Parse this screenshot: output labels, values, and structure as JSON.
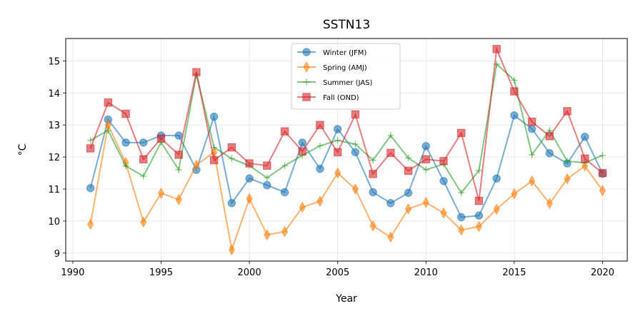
{
  "chart_data": {
    "type": "line",
    "title": "SSTN13",
    "xlabel": "Year",
    "ylabel": "°C",
    "xlim": [
      1989.6,
      2021.4
    ],
    "ylim": [
      8.75,
      15.7
    ],
    "xticks": [
      1990,
      1995,
      2000,
      2005,
      2010,
      2015,
      2020
    ],
    "yticks": [
      9,
      10,
      11,
      12,
      13,
      14,
      15
    ],
    "grid": true,
    "legend_position": "top-center",
    "x": [
      1991,
      1992,
      1993,
      1994,
      1995,
      1996,
      1997,
      1998,
      1999,
      2000,
      2001,
      2002,
      2003,
      2004,
      2005,
      2006,
      2007,
      2008,
      2009,
      2010,
      2011,
      2012,
      2013,
      2014,
      2015,
      2016,
      2017,
      2018,
      2019,
      2020
    ],
    "series": [
      {
        "name": "Winter (JFM)",
        "color": "#1f77b4",
        "marker": "circle",
        "values": [
          11.03,
          13.17,
          12.45,
          12.45,
          12.67,
          12.67,
          11.6,
          13.26,
          10.56,
          11.33,
          11.12,
          10.9,
          12.45,
          11.63,
          12.87,
          12.15,
          10.9,
          10.56,
          10.88,
          12.34,
          11.25,
          10.12,
          10.17,
          11.33,
          13.3,
          12.88,
          12.12,
          11.8,
          12.63,
          11.48
        ]
      },
      {
        "name": "Spring (AMJ)",
        "color": "#ff7f0e",
        "marker": "thin_diamond",
        "values": [
          9.9,
          13.0,
          11.82,
          9.97,
          10.87,
          10.67,
          11.75,
          12.15,
          9.1,
          10.7,
          9.57,
          9.67,
          10.43,
          10.62,
          11.5,
          11.0,
          9.85,
          9.5,
          10.38,
          10.58,
          10.25,
          9.72,
          9.83,
          10.37,
          10.85,
          11.25,
          10.55,
          11.32,
          11.72,
          10.95
        ]
      },
      {
        "name": "Summer (JAS)",
        "color": "#2ca02c",
        "marker": "plus",
        "values": [
          12.52,
          12.83,
          11.72,
          11.4,
          12.46,
          11.6,
          14.58,
          12.3,
          11.95,
          11.73,
          11.35,
          11.73,
          12.05,
          12.35,
          12.52,
          12.4,
          11.9,
          12.67,
          11.97,
          11.6,
          11.78,
          10.88,
          11.58,
          14.9,
          14.4,
          12.07,
          12.83,
          11.87,
          11.82,
          12.05
        ]
      },
      {
        "name": "Fall (OND)",
        "color": "#d62728",
        "marker": "square",
        "values": [
          12.27,
          13.7,
          13.35,
          11.93,
          12.58,
          12.07,
          14.65,
          11.9,
          12.3,
          11.8,
          11.73,
          12.8,
          12.18,
          13.0,
          12.15,
          13.33,
          11.47,
          12.13,
          11.57,
          11.93,
          11.87,
          12.75,
          10.63,
          15.37,
          14.05,
          13.1,
          12.65,
          13.43,
          11.95,
          11.5
        ]
      }
    ]
  }
}
